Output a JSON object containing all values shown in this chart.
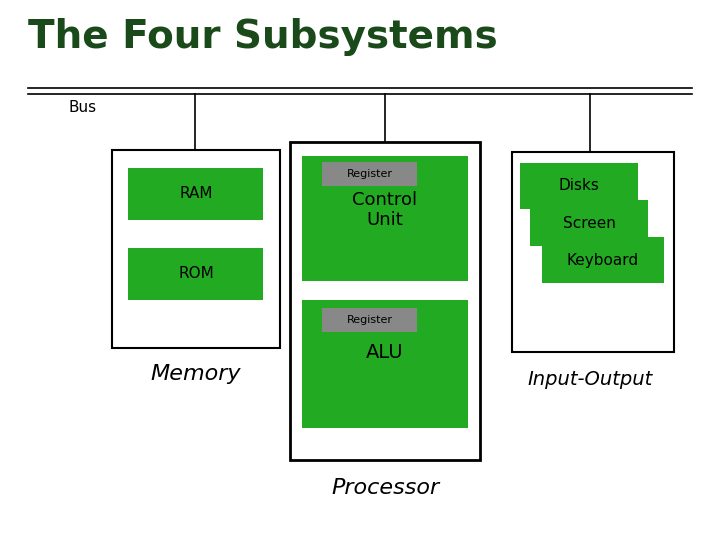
{
  "title": "The Four Subsystems",
  "title_color": "#1a4a1a",
  "background_color": "#ffffff",
  "green_color": "#22aa22",
  "gray_color": "#888888",
  "black": "#000000",
  "labels": {
    "bus": "Bus",
    "memory": "Memory",
    "processor": "Processor",
    "input_output": "Input-Output",
    "ram": "RAM",
    "rom": "ROM",
    "register": "Register",
    "control_unit": "Control\nUnit",
    "alu": "ALU",
    "disks": "Disks",
    "screen": "Screen",
    "keyboard": "Keyboard"
  }
}
